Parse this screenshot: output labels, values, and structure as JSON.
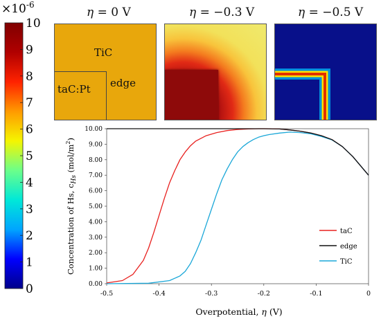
{
  "colorbar": {
    "multiplier": "×10",
    "exponent": "-6",
    "ticks": [
      "10",
      "9",
      "8",
      "7",
      "6",
      "5",
      "4",
      "3",
      "2",
      "1",
      "0"
    ],
    "min": 0,
    "max": 10,
    "colormap": [
      "#00008a",
      "#0000ff",
      "#00a5ff",
      "#00e8d8",
      "#6bff8a",
      "#f5f500",
      "#ff9a00",
      "#ff2200",
      "#b00000",
      "#800000"
    ]
  },
  "panels": [
    {
      "eta_symbol": "η",
      "eta_value": "= 0 V",
      "labels": [
        "TiC",
        "taC:Pt",
        "edge"
      ],
      "color": "#e8a70c"
    },
    {
      "eta_symbol": "η",
      "eta_value": "= −0.3 V",
      "labels": []
    },
    {
      "eta_symbol": "η",
      "eta_value": "= −0.5 V",
      "labels": []
    }
  ],
  "chart_data": {
    "type": "line",
    "xlabel_text": "Overpotential, ",
    "xlabel_symbol": "η",
    "xlabel_unit": " (V)",
    "ylabel_text": "Concentration of Hs, c",
    "ylabel_sub": "Hs",
    "ylabel_unit": " (mol/m",
    "ylabel_sup": "2",
    "ylabel_close": ")",
    "xlim": [
      -0.5,
      0
    ],
    "ylim": [
      0,
      10
    ],
    "xticks": [
      "-0.5",
      "-0.4",
      "-0.3",
      "-0.2",
      "-0.1",
      "0"
    ],
    "yticks": [
      "0.00",
      "1.00",
      "2.00",
      "3.00",
      "4.00",
      "5.00",
      "6.00",
      "7.00",
      "8.00",
      "9.00",
      "10.00"
    ],
    "legend_position": "bottom-right",
    "grid": false,
    "series": [
      {
        "name": "taC",
        "color": "#e8201e",
        "x": [
          -0.5,
          -0.47,
          -0.45,
          -0.43,
          -0.42,
          -0.41,
          -0.4,
          -0.39,
          -0.38,
          -0.37,
          -0.36,
          -0.35,
          -0.34,
          -0.33,
          -0.31,
          -0.29,
          -0.27,
          -0.25,
          -0.23,
          -0.21,
          -0.19,
          -0.17,
          -0.15,
          -0.13,
          -0.11,
          -0.09,
          -0.07,
          -0.05,
          -0.03,
          -0.01,
          0
        ],
        "y": [
          0.05,
          0.2,
          0.6,
          1.5,
          2.3,
          3.3,
          4.4,
          5.5,
          6.5,
          7.3,
          8.0,
          8.5,
          8.9,
          9.2,
          9.55,
          9.75,
          9.88,
          9.95,
          9.98,
          10.0,
          10.0,
          9.98,
          9.92,
          9.84,
          9.72,
          9.55,
          9.3,
          8.85,
          8.2,
          7.4,
          7.0
        ]
      },
      {
        "name": "edge",
        "color": "#111111",
        "x": [
          -0.5,
          -0.45,
          -0.4,
          -0.35,
          -0.3,
          -0.25,
          -0.2,
          -0.17,
          -0.15,
          -0.13,
          -0.11,
          -0.09,
          -0.07,
          -0.05,
          -0.03,
          -0.01,
          0
        ],
        "y": [
          10.0,
          10.0,
          10.0,
          10.0,
          10.0,
          10.0,
          10.0,
          9.98,
          9.92,
          9.84,
          9.72,
          9.55,
          9.3,
          8.85,
          8.2,
          7.4,
          7.0
        ]
      },
      {
        "name": "TiC",
        "color": "#1aa7d8",
        "x": [
          -0.5,
          -0.42,
          -0.38,
          -0.36,
          -0.35,
          -0.34,
          -0.33,
          -0.32,
          -0.31,
          -0.3,
          -0.29,
          -0.28,
          -0.27,
          -0.26,
          -0.25,
          -0.24,
          -0.23,
          -0.22,
          -0.21,
          -0.2,
          -0.19,
          -0.17,
          -0.15,
          -0.13,
          -0.11,
          -0.09,
          -0.07,
          -0.05,
          -0.03,
          -0.01,
          0
        ],
        "y": [
          0.0,
          0.03,
          0.2,
          0.5,
          0.8,
          1.3,
          2.0,
          2.8,
          3.8,
          4.8,
          5.8,
          6.7,
          7.4,
          8.0,
          8.5,
          8.85,
          9.1,
          9.3,
          9.45,
          9.55,
          9.62,
          9.72,
          9.78,
          9.75,
          9.67,
          9.5,
          9.28,
          8.85,
          8.2,
          7.4,
          7.0
        ]
      }
    ]
  }
}
